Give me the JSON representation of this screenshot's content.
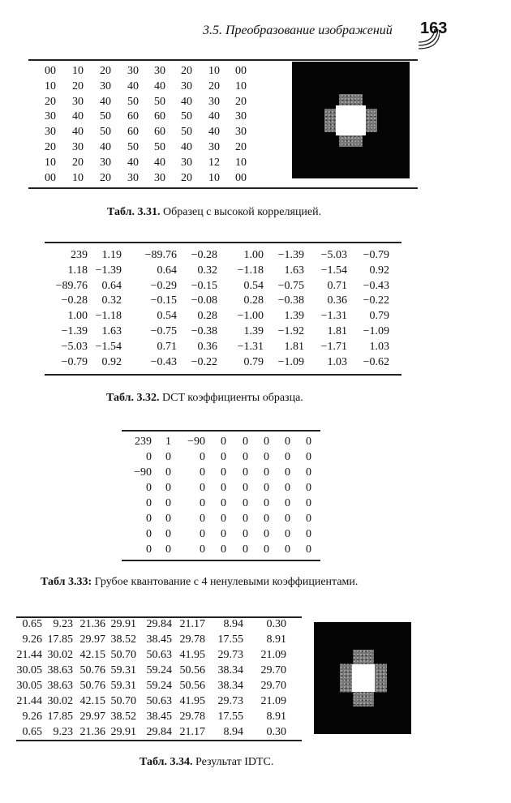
{
  "header": {
    "running_title": "3.5. Преобразование изображений",
    "page_number": "163"
  },
  "table_331": {
    "caption_label": "Табл. 3.31.",
    "caption_text": " Образец с высокой корреляцией.",
    "rows": [
      [
        "00",
        "10",
        "20",
        "30",
        "30",
        "20",
        "10",
        "00"
      ],
      [
        "10",
        "20",
        "30",
        "40",
        "40",
        "30",
        "20",
        "10"
      ],
      [
        "20",
        "30",
        "40",
        "50",
        "50",
        "40",
        "30",
        "20"
      ],
      [
        "30",
        "40",
        "50",
        "60",
        "60",
        "50",
        "40",
        "30"
      ],
      [
        "30",
        "40",
        "50",
        "60",
        "60",
        "50",
        "40",
        "30"
      ],
      [
        "20",
        "30",
        "40",
        "50",
        "50",
        "40",
        "30",
        "20"
      ],
      [
        "10",
        "20",
        "30",
        "40",
        "40",
        "30",
        "12",
        "10"
      ],
      [
        "00",
        "10",
        "20",
        "30",
        "30",
        "20",
        "10",
        "00"
      ]
    ]
  },
  "table_332": {
    "caption_label": "Табл. 3.32.",
    "caption_text": " DCT коэффициенты образца.",
    "rows": [
      [
        "239",
        "1.19",
        "−89.76",
        "−0.28",
        "1.00",
        "−1.39",
        "−5.03",
        "−0.79"
      ],
      [
        "1.18",
        "−1.39",
        "0.64",
        "0.32",
        "−1.18",
        "1.63",
        "−1.54",
        "0.92"
      ],
      [
        "−89.76",
        "0.64",
        "−0.29",
        "−0.15",
        "0.54",
        "−0.75",
        "0.71",
        "−0.43"
      ],
      [
        "−0.28",
        "0.32",
        "−0.15",
        "−0.08",
        "0.28",
        "−0.38",
        "0.36",
        "−0.22"
      ],
      [
        "1.00",
        "−1.18",
        "0.54",
        "0.28",
        "−1.00",
        "1.39",
        "−1.31",
        "0.79"
      ],
      [
        "−1.39",
        "1.63",
        "−0.75",
        "−0.38",
        "1.39",
        "−1.92",
        "1.81",
        "−1.09"
      ],
      [
        "−5.03",
        "−1.54",
        "0.71",
        "0.36",
        "−1.31",
        "1.81",
        "−1.71",
        "1.03"
      ],
      [
        "−0.79",
        "0.92",
        "−0.43",
        "−0.22",
        "0.79",
        "−1.09",
        "1.03",
        "−0.62"
      ]
    ]
  },
  "table_333": {
    "caption_label": "Табл 3.33:",
    "caption_text": " Грубое квантование с 4 ненулевыми коэффициентами.",
    "rows": [
      [
        "239",
        "1",
        "−90",
        "0",
        "0",
        "0",
        "0",
        "0"
      ],
      [
        "0",
        "0",
        "0",
        "0",
        "0",
        "0",
        "0",
        "0"
      ],
      [
        "−90",
        "0",
        "0",
        "0",
        "0",
        "0",
        "0",
        "0"
      ],
      [
        "0",
        "0",
        "0",
        "0",
        "0",
        "0",
        "0",
        "0"
      ],
      [
        "0",
        "0",
        "0",
        "0",
        "0",
        "0",
        "0",
        "0"
      ],
      [
        "0",
        "0",
        "0",
        "0",
        "0",
        "0",
        "0",
        "0"
      ],
      [
        "0",
        "0",
        "0",
        "0",
        "0",
        "0",
        "0",
        "0"
      ],
      [
        "0",
        "0",
        "0",
        "0",
        "0",
        "0",
        "0",
        "0"
      ]
    ]
  },
  "table_334": {
    "caption_label": "Табл. 3.34.",
    "caption_text": " Результат IDTC.",
    "rows": [
      [
        "0.65",
        "9.23",
        "21.36",
        "29.91",
        "29.84",
        "21.17",
        "8.94",
        "0.30"
      ],
      [
        "9.26",
        "17.85",
        "29.97",
        "38.52",
        "38.45",
        "29.78",
        "17.55",
        "8.91"
      ],
      [
        "21.44",
        "30.02",
        "42.15",
        "50.70",
        "50.63",
        "41.95",
        "29.73",
        "21.09"
      ],
      [
        "30.05",
        "38.63",
        "50.76",
        "59.31",
        "59.24",
        "50.56",
        "38.34",
        "29.70"
      ],
      [
        "30.05",
        "38.63",
        "50.76",
        "59.31",
        "59.24",
        "50.56",
        "38.34",
        "29.70"
      ],
      [
        "21.44",
        "30.02",
        "42.15",
        "50.70",
        "50.63",
        "41.95",
        "29.73",
        "21.09"
      ],
      [
        "9.26",
        "17.85",
        "29.97",
        "38.52",
        "38.45",
        "29.78",
        "17.55",
        "8.91"
      ],
      [
        "0.65",
        "9.23",
        "21.36",
        "29.91",
        "29.84",
        "21.17",
        "8.94",
        "0.30"
      ]
    ]
  }
}
